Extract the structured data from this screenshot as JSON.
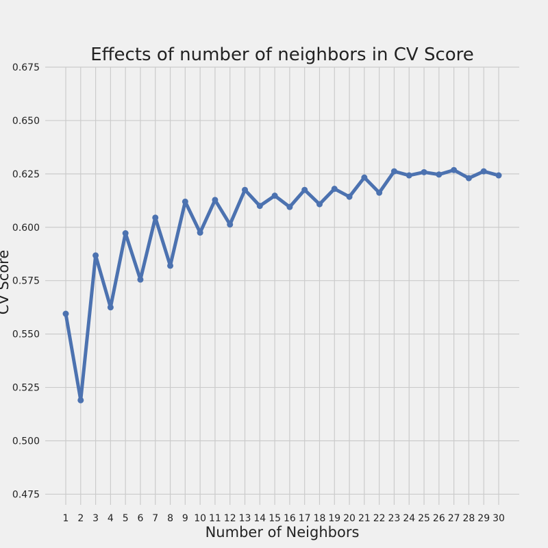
{
  "chart_data": {
    "type": "line",
    "title": "Effects of number of neighbors in CV Score",
    "xlabel": "Number of Neighbors",
    "ylabel": "CV Score",
    "x": [
      1,
      2,
      3,
      4,
      5,
      6,
      7,
      8,
      9,
      10,
      11,
      12,
      13,
      14,
      15,
      16,
      17,
      18,
      19,
      20,
      21,
      22,
      23,
      24,
      25,
      26,
      27,
      28,
      29,
      30
    ],
    "series": [
      {
        "values": [
          0.5595,
          0.519,
          0.5868,
          0.5625,
          0.5972,
          0.5755,
          0.6045,
          0.582,
          0.612,
          0.5975,
          0.6128,
          0.6013,
          0.6175,
          0.61,
          0.6148,
          0.6095,
          0.6175,
          0.6108,
          0.618,
          0.6143,
          0.6233,
          0.6162,
          0.6262,
          0.6243,
          0.6258,
          0.6247,
          0.6268,
          0.623,
          0.6262,
          0.6243
        ],
        "color": "#4c72b0"
      }
    ],
    "ylim": [
      0.47,
      0.675
    ],
    "yticks": [
      "0.475",
      "0.500",
      "0.525",
      "0.550",
      "0.575",
      "0.600",
      "0.625",
      "0.650",
      "0.675"
    ],
    "grid": true,
    "background": "#f0f0f0",
    "grid_color": "#cbcbcb"
  }
}
